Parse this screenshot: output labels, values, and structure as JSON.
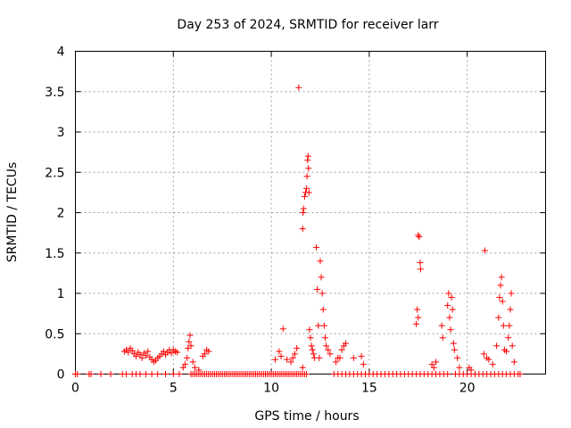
{
  "chart_data": {
    "type": "scatter",
    "title": "Day 253 of 2024, SRMTID for receiver larr",
    "xlabel": "GPS time / hours",
    "ylabel": "SRMTID / TECUs",
    "xlim": [
      0,
      24
    ],
    "ylim": [
      0,
      4
    ],
    "xticks": [
      0,
      5,
      10,
      15,
      20
    ],
    "yticks": [
      0,
      0.5,
      1,
      1.5,
      2,
      2.5,
      3,
      3.5,
      4
    ],
    "xtick_labels": [
      "0",
      "5",
      "10",
      "15",
      "20"
    ],
    "ytick_labels": [
      "0",
      "0.5",
      "1",
      "1.5",
      "2",
      "2.5",
      "3",
      "3.5",
      "4"
    ],
    "grid": true,
    "marker": "+",
    "color": "#ff0000",
    "series": [
      {
        "name": "SRMTID",
        "points": [
          [
            0.0,
            0
          ],
          [
            0.1,
            0
          ],
          [
            0.7,
            0
          ],
          [
            0.8,
            0
          ],
          [
            1.3,
            0
          ],
          [
            1.8,
            0
          ],
          [
            2.4,
            0
          ],
          [
            2.6,
            0
          ],
          [
            2.9,
            0
          ],
          [
            3.1,
            0
          ],
          [
            3.3,
            0
          ],
          [
            3.6,
            0
          ],
          [
            3.9,
            0
          ],
          [
            4.2,
            0
          ],
          [
            4.6,
            0
          ],
          [
            5.0,
            0
          ],
          [
            5.3,
            0
          ],
          [
            5.9,
            0
          ],
          [
            6.0,
            0
          ],
          [
            6.1,
            0
          ],
          [
            6.2,
            0
          ],
          [
            6.3,
            0
          ],
          [
            6.4,
            0
          ],
          [
            6.5,
            0
          ],
          [
            6.6,
            0
          ],
          [
            6.7,
            0
          ],
          [
            6.8,
            0
          ],
          [
            6.9,
            0
          ],
          [
            7.0,
            0
          ],
          [
            7.1,
            0
          ],
          [
            7.2,
            0
          ],
          [
            7.3,
            0
          ],
          [
            7.4,
            0
          ],
          [
            7.5,
            0
          ],
          [
            7.6,
            0
          ],
          [
            7.7,
            0
          ],
          [
            7.8,
            0
          ],
          [
            7.9,
            0
          ],
          [
            8.0,
            0
          ],
          [
            8.1,
            0
          ],
          [
            8.2,
            0
          ],
          [
            8.3,
            0
          ],
          [
            8.4,
            0
          ],
          [
            8.5,
            0
          ],
          [
            8.6,
            0
          ],
          [
            8.7,
            0
          ],
          [
            8.8,
            0
          ],
          [
            8.9,
            0
          ],
          [
            9.0,
            0
          ],
          [
            9.1,
            0
          ],
          [
            9.2,
            0
          ],
          [
            9.3,
            0
          ],
          [
            9.4,
            0
          ],
          [
            9.5,
            0
          ],
          [
            9.6,
            0
          ],
          [
            9.7,
            0
          ],
          [
            9.8,
            0
          ],
          [
            9.9,
            0
          ],
          [
            10.0,
            0
          ],
          [
            10.1,
            0
          ],
          [
            10.2,
            0
          ],
          [
            10.3,
            0
          ],
          [
            10.4,
            0
          ],
          [
            10.5,
            0
          ],
          [
            10.6,
            0
          ],
          [
            10.7,
            0
          ],
          [
            10.8,
            0
          ],
          [
            10.9,
            0
          ],
          [
            11.0,
            0
          ],
          [
            11.1,
            0
          ],
          [
            11.2,
            0
          ],
          [
            11.3,
            0
          ],
          [
            11.4,
            0
          ],
          [
            11.5,
            0
          ],
          [
            11.6,
            0
          ],
          [
            11.7,
            0
          ],
          [
            11.8,
            0
          ],
          [
            13.2,
            0
          ],
          [
            13.4,
            0
          ],
          [
            13.6,
            0
          ],
          [
            13.8,
            0
          ],
          [
            14.0,
            0
          ],
          [
            14.2,
            0
          ],
          [
            14.4,
            0
          ],
          [
            14.6,
            0
          ],
          [
            14.8,
            0
          ],
          [
            15.0,
            0
          ],
          [
            15.2,
            0
          ],
          [
            15.4,
            0
          ],
          [
            15.6,
            0
          ],
          [
            15.8,
            0
          ],
          [
            16.0,
            0
          ],
          [
            16.2,
            0
          ],
          [
            16.4,
            0
          ],
          [
            16.6,
            0
          ],
          [
            16.8,
            0
          ],
          [
            17.0,
            0
          ],
          [
            17.2,
            0
          ],
          [
            17.4,
            0
          ],
          [
            17.6,
            0
          ],
          [
            17.8,
            0
          ],
          [
            18.0,
            0
          ],
          [
            18.2,
            0
          ],
          [
            18.4,
            0
          ],
          [
            18.6,
            0
          ],
          [
            18.8,
            0
          ],
          [
            19.0,
            0
          ],
          [
            19.4,
            0
          ],
          [
            19.6,
            0
          ],
          [
            19.8,
            0
          ],
          [
            20.0,
            0
          ],
          [
            20.2,
            0
          ],
          [
            20.4,
            0
          ],
          [
            20.6,
            0
          ],
          [
            20.8,
            0
          ],
          [
            21.0,
            0
          ],
          [
            21.2,
            0
          ],
          [
            21.4,
            0
          ],
          [
            21.6,
            0
          ],
          [
            21.8,
            0
          ],
          [
            22.0,
            0
          ],
          [
            22.2,
            0
          ],
          [
            22.4,
            0
          ],
          [
            22.6,
            0
          ],
          [
            22.7,
            0
          ],
          [
            2.5,
            0.28
          ],
          [
            2.6,
            0.3
          ],
          [
            2.7,
            0.27
          ],
          [
            2.8,
            0.32
          ],
          [
            2.9,
            0.29
          ],
          [
            3.0,
            0.25
          ],
          [
            3.1,
            0.22
          ],
          [
            3.2,
            0.27
          ],
          [
            3.3,
            0.24
          ],
          [
            3.4,
            0.2
          ],
          [
            3.5,
            0.26
          ],
          [
            3.6,
            0.23
          ],
          [
            3.7,
            0.28
          ],
          [
            3.8,
            0.21
          ],
          [
            3.9,
            0.18
          ],
          [
            4.0,
            0.15
          ],
          [
            4.1,
            0.17
          ],
          [
            4.2,
            0.2
          ],
          [
            4.3,
            0.22
          ],
          [
            4.4,
            0.25
          ],
          [
            4.5,
            0.28
          ],
          [
            4.6,
            0.24
          ],
          [
            4.7,
            0.27
          ],
          [
            4.8,
            0.3
          ],
          [
            4.9,
            0.26
          ],
          [
            5.0,
            0.3
          ],
          [
            5.1,
            0.28
          ],
          [
            5.2,
            0.27
          ],
          [
            5.5,
            0.08
          ],
          [
            5.6,
            0.12
          ],
          [
            5.7,
            0.2
          ],
          [
            5.75,
            0.32
          ],
          [
            5.8,
            0.4
          ],
          [
            5.85,
            0.48
          ],
          [
            5.9,
            0.35
          ],
          [
            6.0,
            0.15
          ],
          [
            6.1,
            0.08
          ],
          [
            6.3,
            0.05
          ],
          [
            6.5,
            0.22
          ],
          [
            6.6,
            0.25
          ],
          [
            6.7,
            0.3
          ],
          [
            6.8,
            0.28
          ],
          [
            10.2,
            0.18
          ],
          [
            10.4,
            0.28
          ],
          [
            10.5,
            0.22
          ],
          [
            10.6,
            0.56
          ],
          [
            10.8,
            0.18
          ],
          [
            11.0,
            0.15
          ],
          [
            11.1,
            0.2
          ],
          [
            11.2,
            0.25
          ],
          [
            11.3,
            0.32
          ],
          [
            11.4,
            3.55
          ],
          [
            11.6,
            0.08
          ],
          [
            11.6,
            1.8
          ],
          [
            11.62,
            2.0
          ],
          [
            11.65,
            2.05
          ],
          [
            11.7,
            2.2
          ],
          [
            11.75,
            2.25
          ],
          [
            11.8,
            2.3
          ],
          [
            11.82,
            2.45
          ],
          [
            11.85,
            2.65
          ],
          [
            11.88,
            2.7
          ],
          [
            11.9,
            2.55
          ],
          [
            11.92,
            2.25
          ],
          [
            11.95,
            0.55
          ],
          [
            12.0,
            0.45
          ],
          [
            12.05,
            0.35
          ],
          [
            12.1,
            0.3
          ],
          [
            12.15,
            0.25
          ],
          [
            12.2,
            0.2
          ],
          [
            12.3,
            1.57
          ],
          [
            12.35,
            1.05
          ],
          [
            12.4,
            0.6
          ],
          [
            12.45,
            0.2
          ],
          [
            12.5,
            1.4
          ],
          [
            12.55,
            1.2
          ],
          [
            12.6,
            1.0
          ],
          [
            12.65,
            0.8
          ],
          [
            12.7,
            0.6
          ],
          [
            12.75,
            0.45
          ],
          [
            12.8,
            0.35
          ],
          [
            12.9,
            0.3
          ],
          [
            13.0,
            0.25
          ],
          [
            13.3,
            0.15
          ],
          [
            13.4,
            0.2
          ],
          [
            13.5,
            0.2
          ],
          [
            13.6,
            0.3
          ],
          [
            13.7,
            0.35
          ],
          [
            13.8,
            0.38
          ],
          [
            14.2,
            0.2
          ],
          [
            14.6,
            0.22
          ],
          [
            14.7,
            0.12
          ],
          [
            17.4,
            0.62
          ],
          [
            17.45,
            0.8
          ],
          [
            17.5,
            1.72
          ],
          [
            17.55,
            1.7
          ],
          [
            17.6,
            1.38
          ],
          [
            17.62,
            1.3
          ],
          [
            17.5,
            0.7
          ],
          [
            18.2,
            0.12
          ],
          [
            18.3,
            0.08
          ],
          [
            18.4,
            0.15
          ],
          [
            18.7,
            0.6
          ],
          [
            18.75,
            0.45
          ],
          [
            19.0,
            0.85
          ],
          [
            19.05,
            1.0
          ],
          [
            19.1,
            0.7
          ],
          [
            19.15,
            0.55
          ],
          [
            19.2,
            0.95
          ],
          [
            19.25,
            0.8
          ],
          [
            19.3,
            0.38
          ],
          [
            19.35,
            0.3
          ],
          [
            19.5,
            0.2
          ],
          [
            19.6,
            0.08
          ],
          [
            20.1,
            0.08
          ],
          [
            20.2,
            0.05
          ],
          [
            20.9,
            1.53
          ],
          [
            20.85,
            0.25
          ],
          [
            21.0,
            0.2
          ],
          [
            21.1,
            0.18
          ],
          [
            21.3,
            0.12
          ],
          [
            21.5,
            0.35
          ],
          [
            21.6,
            0.7
          ],
          [
            21.65,
            0.95
          ],
          [
            21.7,
            1.1
          ],
          [
            21.75,
            1.2
          ],
          [
            21.8,
            0.9
          ],
          [
            21.85,
            0.6
          ],
          [
            21.9,
            0.3
          ],
          [
            22.0,
            0.28
          ],
          [
            22.1,
            0.45
          ],
          [
            22.15,
            0.6
          ],
          [
            22.2,
            0.8
          ],
          [
            22.25,
            1.0
          ],
          [
            22.3,
            0.35
          ],
          [
            22.4,
            0.15
          ]
        ]
      }
    ]
  }
}
